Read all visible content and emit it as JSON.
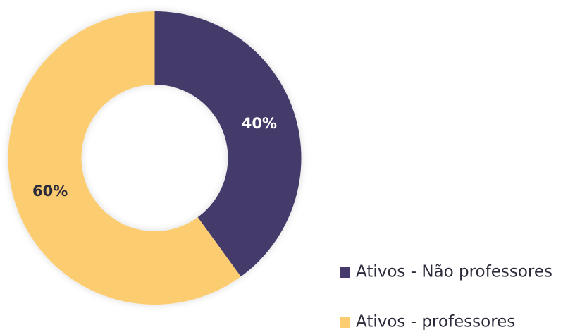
{
  "chart_data": {
    "type": "pie",
    "donut": true,
    "categories": [
      "Ativos - Não professores",
      "Ativos - professores"
    ],
    "values": [
      40,
      60
    ],
    "value_labels": [
      "40%",
      "60%"
    ],
    "colors": [
      "#453a6b",
      "#fccd70"
    ],
    "label_colors": [
      "#ffffff",
      "#2b2a3a"
    ],
    "legend": "bottom right"
  }
}
